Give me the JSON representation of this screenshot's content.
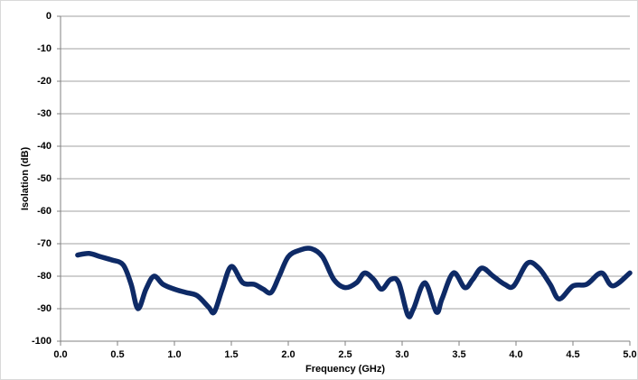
{
  "chart_data": {
    "type": "line",
    "x_label": "Frequency (GHz)",
    "y_label": "Isolation (dB)",
    "x": [
      0.15,
      0.25,
      0.35,
      0.45,
      0.55,
      0.62,
      0.68,
      0.75,
      0.82,
      0.9,
      1.0,
      1.1,
      1.2,
      1.3,
      1.35,
      1.42,
      1.5,
      1.6,
      1.7,
      1.78,
      1.85,
      1.92,
      2.0,
      2.1,
      2.2,
      2.3,
      2.4,
      2.5,
      2.6,
      2.67,
      2.75,
      2.82,
      2.9,
      2.97,
      3.05,
      3.1,
      3.2,
      3.3,
      3.35,
      3.45,
      3.55,
      3.62,
      3.7,
      3.8,
      3.9,
      3.98,
      4.1,
      4.2,
      4.3,
      4.38,
      4.5,
      4.62,
      4.75,
      4.85,
      5.0
    ],
    "series": [
      {
        "color": "#0e2a66",
        "values": [
          -73.5,
          -73,
          -74,
          -75,
          -76.5,
          -82.5,
          -90,
          -84,
          -80,
          -82.5,
          -84,
          -85,
          -86,
          -89.5,
          -91,
          -84,
          -77,
          -82,
          -82.5,
          -84,
          -85,
          -80,
          -74,
          -72,
          -71.5,
          -74,
          -81,
          -83.5,
          -82,
          -79,
          -81,
          -84,
          -81,
          -82,
          -92,
          -90,
          -82,
          -91,
          -87,
          -79,
          -83.5,
          -81,
          -77.5,
          -80,
          -82.5,
          -83,
          -76,
          -77.5,
          -82.5,
          -87,
          -83,
          -82.5,
          -79,
          -83,
          -79
        ]
      }
    ],
    "xlim": [
      0,
      5
    ],
    "xticks": [
      {
        "value": 0,
        "label": "0.0"
      },
      0.5,
      {
        "value": 1,
        "label": "1.0"
      },
      1.5,
      {
        "value": 2,
        "label": "2.0"
      },
      2.5,
      {
        "value": 3,
        "label": "3.0"
      },
      3.5,
      {
        "value": 4,
        "label": "4.0"
      },
      4.5,
      {
        "value": 5,
        "label": "5.0"
      }
    ],
    "ylim": [
      -100,
      0
    ],
    "yticks": [
      0,
      -10,
      -20,
      -30,
      -40,
      -50,
      -60,
      -70,
      -80,
      -90,
      -100
    ],
    "grid": true
  }
}
